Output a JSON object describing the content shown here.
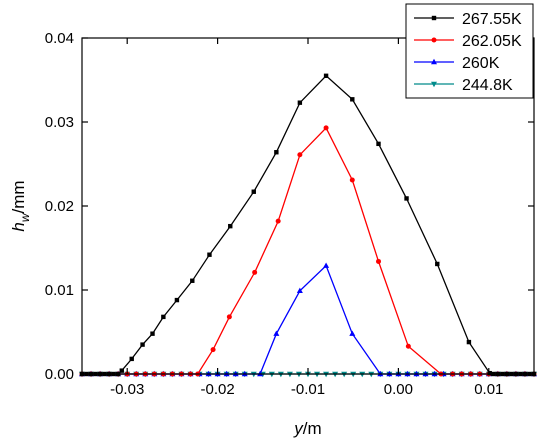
{
  "chart_data": {
    "type": "line",
    "title": "",
    "xlabel_var": "y",
    "xlabel_unit": "/m",
    "ylabel_var": "h",
    "ylabel_sub": "w",
    "ylabel_unit": "/mm",
    "xlim": [
      -0.035,
      0.015
    ],
    "ylim": [
      0,
      0.04
    ],
    "x_ticks": [
      {
        "value": -0.03,
        "label": "-0.03"
      },
      {
        "value": -0.02,
        "label": "-0.02"
      },
      {
        "value": -0.01,
        "label": "-0.01"
      },
      {
        "value": 0.0,
        "label": "0.00"
      },
      {
        "value": 0.01,
        "label": "0.01"
      }
    ],
    "y_ticks": [
      {
        "value": 0.0,
        "label": "0.00"
      },
      {
        "value": 0.01,
        "label": "0.01"
      },
      {
        "value": 0.02,
        "label": "0.02"
      },
      {
        "value": 0.03,
        "label": "0.03"
      },
      {
        "value": 0.04,
        "label": "0.04"
      }
    ],
    "grid": false,
    "legend_position": "top-right",
    "series": [
      {
        "name": "267.55K",
        "color": "#000000",
        "marker": "square",
        "points": [
          [
            -0.035,
            0.0
          ],
          [
            -0.0345,
            0.0
          ],
          [
            -0.034,
            0.0
          ],
          [
            -0.0335,
            0.0
          ],
          [
            -0.033,
            0.0
          ],
          [
            -0.0325,
            0.0
          ],
          [
            -0.032,
            0.0
          ],
          [
            -0.0315,
            0.0
          ],
          [
            -0.031,
            0.0
          ],
          [
            -0.0306,
            0.0004
          ],
          [
            -0.0295,
            0.0018
          ],
          [
            -0.0283,
            0.0035
          ],
          [
            -0.0272,
            0.0048
          ],
          [
            -0.026,
            0.0068
          ],
          [
            -0.0245,
            0.0088
          ],
          [
            -0.0228,
            0.0111
          ],
          [
            -0.0209,
            0.0142
          ],
          [
            -0.0186,
            0.0176
          ],
          [
            -0.016,
            0.0217
          ],
          [
            -0.0135,
            0.0264
          ],
          [
            -0.0109,
            0.0323
          ],
          [
            -0.008,
            0.0355
          ],
          [
            -0.0051,
            0.0327
          ],
          [
            -0.0022,
            0.0274
          ],
          [
            0.0009,
            0.0209
          ],
          [
            0.0043,
            0.0131
          ],
          [
            0.0078,
            0.0038
          ],
          [
            0.0101,
            0.0001
          ],
          [
            0.0105,
            0.0
          ],
          [
            0.011,
            0.0
          ],
          [
            0.0115,
            0.0
          ],
          [
            0.012,
            0.0
          ],
          [
            0.0125,
            0.0
          ],
          [
            0.013,
            0.0
          ],
          [
            0.0135,
            0.0
          ],
          [
            0.014,
            0.0
          ],
          [
            0.0145,
            0.0
          ],
          [
            0.015,
            0.0
          ]
        ]
      },
      {
        "name": "262.05K",
        "color": "#ff0000",
        "marker": "circle",
        "points": [
          [
            -0.035,
            0.0
          ],
          [
            -0.034,
            0.0
          ],
          [
            -0.033,
            0.0
          ],
          [
            -0.032,
            0.0
          ],
          [
            -0.031,
            0.0
          ],
          [
            -0.03,
            0.0
          ],
          [
            -0.029,
            0.0
          ],
          [
            -0.028,
            0.0
          ],
          [
            -0.027,
            0.0
          ],
          [
            -0.026,
            0.0
          ],
          [
            -0.025,
            0.0
          ],
          [
            -0.024,
            0.0
          ],
          [
            -0.023,
            0.0
          ],
          [
            -0.0222,
            0.0
          ],
          [
            -0.0205,
            0.0029
          ],
          [
            -0.0187,
            0.0068
          ],
          [
            -0.0159,
            0.0121
          ],
          [
            -0.0133,
            0.0182
          ],
          [
            -0.0109,
            0.0261
          ],
          [
            -0.008,
            0.0293
          ],
          [
            -0.0051,
            0.0231
          ],
          [
            -0.0022,
            0.0134
          ],
          [
            0.0011,
            0.0033
          ],
          [
            0.0047,
            0.0
          ],
          [
            0.006,
            0.0
          ],
          [
            0.007,
            0.0
          ],
          [
            0.008,
            0.0
          ],
          [
            0.009,
            0.0
          ],
          [
            0.01,
            0.0
          ],
          [
            0.011,
            0.0
          ],
          [
            0.012,
            0.0
          ],
          [
            0.013,
            0.0
          ],
          [
            0.014,
            0.0
          ],
          [
            0.015,
            0.0
          ]
        ]
      },
      {
        "name": "260K",
        "color": "#0000ff",
        "marker": "triangle-up",
        "points": [
          [
            -0.035,
            0.0
          ],
          [
            -0.034,
            0.0
          ],
          [
            -0.033,
            0.0
          ],
          [
            -0.032,
            0.0
          ],
          [
            -0.031,
            0.0
          ],
          [
            -0.03,
            0.0
          ],
          [
            -0.029,
            0.0
          ],
          [
            -0.028,
            0.0
          ],
          [
            -0.027,
            0.0
          ],
          [
            -0.026,
            0.0
          ],
          [
            -0.025,
            0.0
          ],
          [
            -0.024,
            0.0
          ],
          [
            -0.023,
            0.0
          ],
          [
            -0.022,
            0.0
          ],
          [
            -0.021,
            0.0
          ],
          [
            -0.02,
            0.0
          ],
          [
            -0.019,
            0.0
          ],
          [
            -0.018,
            0.0
          ],
          [
            -0.017,
            0.0
          ],
          [
            -0.0153,
            0.0
          ],
          [
            -0.0135,
            0.0048
          ],
          [
            -0.0109,
            0.0099
          ],
          [
            -0.008,
            0.0129
          ],
          [
            -0.0051,
            0.0048
          ],
          [
            -0.002,
            0.0
          ],
          [
            -0.001,
            0.0
          ],
          [
            0.0,
            0.0
          ],
          [
            0.001,
            0.0
          ],
          [
            0.002,
            0.0
          ],
          [
            0.003,
            0.0
          ],
          [
            0.004,
            0.0
          ],
          [
            0.005,
            0.0
          ],
          [
            0.006,
            0.0
          ],
          [
            0.007,
            0.0
          ],
          [
            0.008,
            0.0
          ],
          [
            0.009,
            0.0
          ],
          [
            0.01,
            0.0
          ],
          [
            0.011,
            0.0
          ],
          [
            0.012,
            0.0
          ],
          [
            0.013,
            0.0
          ],
          [
            0.014,
            0.0
          ],
          [
            0.015,
            0.0
          ]
        ]
      },
      {
        "name": "244.8K",
        "color": "#008b8b",
        "marker": "triangle-down",
        "points": [
          [
            -0.035,
            0.0
          ],
          [
            -0.034,
            0.0
          ],
          [
            -0.033,
            0.0
          ],
          [
            -0.032,
            0.0
          ],
          [
            -0.031,
            0.0
          ],
          [
            -0.03,
            0.0
          ],
          [
            -0.029,
            0.0
          ],
          [
            -0.028,
            0.0
          ],
          [
            -0.027,
            0.0
          ],
          [
            -0.026,
            0.0
          ],
          [
            -0.025,
            0.0
          ],
          [
            -0.024,
            0.0
          ],
          [
            -0.023,
            0.0
          ],
          [
            -0.022,
            0.0
          ],
          [
            -0.021,
            0.0
          ],
          [
            -0.02,
            0.0
          ],
          [
            -0.019,
            0.0
          ],
          [
            -0.018,
            0.0
          ],
          [
            -0.017,
            0.0
          ],
          [
            -0.016,
            0.0
          ],
          [
            -0.015,
            0.0
          ],
          [
            -0.014,
            0.0
          ],
          [
            -0.013,
            0.0
          ],
          [
            -0.012,
            0.0
          ],
          [
            -0.011,
            0.0
          ],
          [
            -0.01,
            0.0
          ],
          [
            -0.009,
            0.0
          ],
          [
            -0.008,
            0.0
          ],
          [
            -0.007,
            0.0
          ],
          [
            -0.006,
            0.0
          ],
          [
            -0.005,
            0.0
          ],
          [
            -0.004,
            0.0
          ],
          [
            -0.003,
            0.0
          ],
          [
            -0.002,
            0.0
          ],
          [
            -0.001,
            0.0
          ],
          [
            0.0,
            0.0
          ],
          [
            0.001,
            0.0
          ],
          [
            0.002,
            0.0
          ],
          [
            0.003,
            0.0
          ],
          [
            0.004,
            0.0
          ],
          [
            0.005,
            0.0
          ],
          [
            0.006,
            0.0
          ],
          [
            0.007,
            0.0
          ],
          [
            0.008,
            0.0
          ],
          [
            0.009,
            0.0
          ],
          [
            0.01,
            0.0
          ],
          [
            0.011,
            0.0
          ],
          [
            0.012,
            0.0
          ],
          [
            0.013,
            0.0
          ],
          [
            0.014,
            0.0
          ],
          [
            0.015,
            0.0
          ]
        ]
      }
    ]
  }
}
